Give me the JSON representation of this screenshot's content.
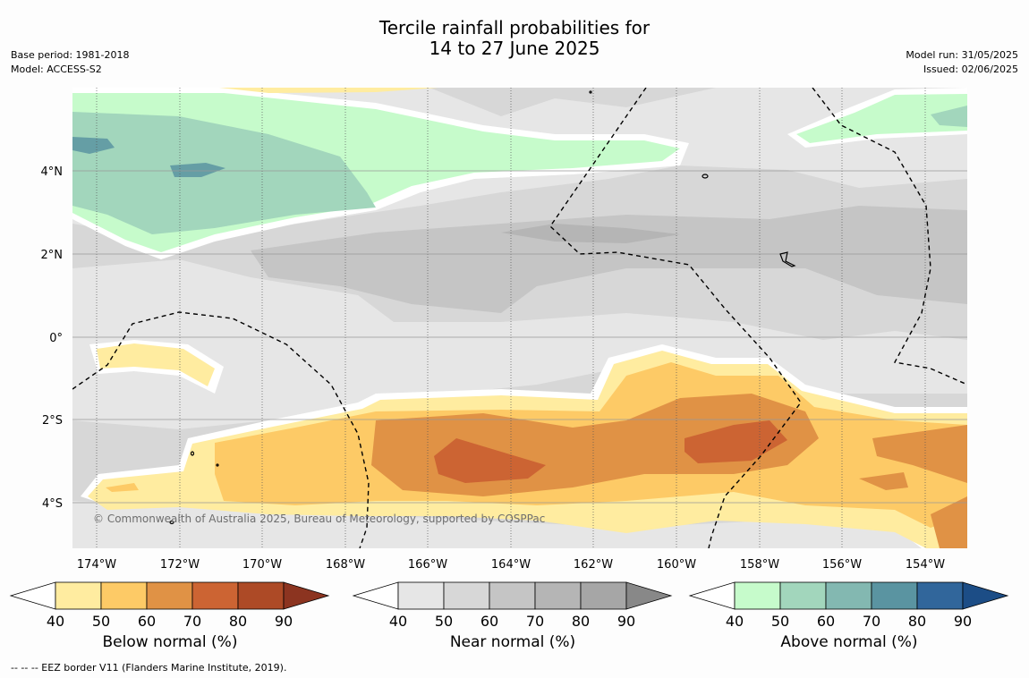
{
  "title": {
    "line1": "Tercile rainfall probabilities for",
    "line2": "14 to 27 June 2025"
  },
  "meta_left": {
    "base_period": "Base period: 1981-2018",
    "model": "Model: ACCESS-S2"
  },
  "meta_right": {
    "model_run": "Model run: 31/05/2025",
    "issued": "Issued: 02/06/2025"
  },
  "copyright": "© Commonwealth of Australia 2025, Bureau of Meteorology, supported by COSPPac",
  "footer": "-- -- -- EEZ border V11 (Flanders Marine Institute, 2019).",
  "axes": {
    "lon_labels": [
      "174°W",
      "172°W",
      "170°W",
      "168°W",
      "166°W",
      "164°W",
      "162°W",
      "160°W",
      "158°W",
      "156°W",
      "154°W"
    ],
    "lat_labels": [
      "4°N",
      "2°N",
      "0°",
      "2°S",
      "4°S"
    ]
  },
  "colorbars": [
    {
      "id": "below",
      "label": "Below normal (%)",
      "ticks": [
        "40",
        "50",
        "60",
        "70",
        "80",
        "90"
      ],
      "colors": [
        "#ffeca0",
        "#fdca66",
        "#e09245",
        "#cc6433",
        "#ad4a26",
        "#8c3420"
      ]
    },
    {
      "id": "near",
      "label": "Near normal (%)",
      "ticks": [
        "40",
        "50",
        "60",
        "70",
        "80",
        "90"
      ],
      "colors": [
        "#e6e6e6",
        "#d7d7d7",
        "#c5c5c5",
        "#b5b5b5",
        "#a6a6a6",
        "#888888"
      ]
    },
    {
      "id": "above",
      "label": "Above normal (%)",
      "ticks": [
        "40",
        "50",
        "60",
        "70",
        "80",
        "90"
      ],
      "colors": [
        "#c6fbcb",
        "#a2d6bc",
        "#83b8b1",
        "#5a94a1",
        "#31669b",
        "#1c4d86"
      ]
    }
  ]
}
